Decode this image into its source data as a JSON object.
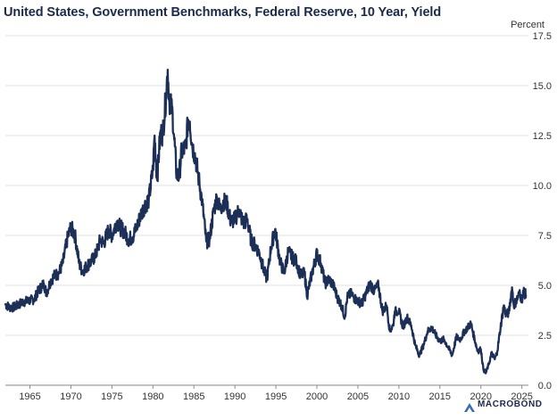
{
  "chart_data": {
    "type": "line",
    "title": "United States, Government Benchmarks, Federal Reserve, 10 Year, Yield",
    "ylabel_unit": "Percent",
    "ylim": [
      0,
      17.5
    ],
    "xlim": [
      1962,
      2025.8
    ],
    "y_ticks": [
      "0.0",
      "2.5",
      "5.0",
      "7.5",
      "10.0",
      "12.5",
      "15.0",
      "17.5"
    ],
    "x_ticks": [
      "1965",
      "1970",
      "1975",
      "1980",
      "1985",
      "1990",
      "1995",
      "2000",
      "2005",
      "2010",
      "2015",
      "2020",
      "2025"
    ],
    "y_axis_position": "right",
    "grid": "horizontal",
    "watermark": "MACROBOND",
    "series": [
      {
        "color": "#1b2f57",
        "x": [
          1962.0,
          1962.5,
          1963.0,
          1963.5,
          1964.0,
          1964.5,
          1965.0,
          1965.5,
          1966.0,
          1966.7,
          1967.0,
          1967.5,
          1968.0,
          1968.5,
          1969.0,
          1969.6,
          1970.0,
          1970.5,
          1971.0,
          1971.4,
          1972.0,
          1972.5,
          1973.0,
          1973.6,
          1974.0,
          1974.6,
          1975.0,
          1975.6,
          1976.0,
          1976.5,
          1977.0,
          1977.5,
          1978.0,
          1978.5,
          1979.0,
          1979.5,
          1980.0,
          1980.2,
          1980.5,
          1980.9,
          1981.2,
          1981.6,
          1981.8,
          1982.0,
          1982.4,
          1982.6,
          1982.9,
          1983.2,
          1983.5,
          1984.0,
          1984.3,
          1984.5,
          1984.8,
          1985.2,
          1985.6,
          1986.0,
          1986.5,
          1986.9,
          1987.4,
          1987.8,
          1988.2,
          1988.6,
          1989.0,
          1989.5,
          1990.0,
          1990.5,
          1991.0,
          1991.5,
          1992.0,
          1992.5,
          1993.0,
          1993.5,
          1993.9,
          1994.4,
          1994.9,
          1995.5,
          1996.0,
          1996.5,
          1997.0,
          1997.5,
          1998.0,
          1998.5,
          1998.8,
          1999.4,
          2000.0,
          2000.5,
          2001.0,
          2001.5,
          2002.0,
          2002.5,
          2003.0,
          2003.4,
          2003.7,
          2004.2,
          2004.5,
          2005.0,
          2005.5,
          2006.0,
          2006.5,
          2007.0,
          2007.5,
          2008.0,
          2008.5,
          2008.9,
          2009.3,
          2009.5,
          2010.0,
          2010.5,
          2011.0,
          2011.5,
          2012.0,
          2012.5,
          2013.0,
          2013.5,
          2014.0,
          2014.5,
          2015.0,
          2015.5,
          2016.0,
          2016.5,
          2017.0,
          2017.5,
          2018.0,
          2018.8,
          2019.0,
          2019.6,
          2020.0,
          2020.3,
          2020.6,
          2021.0,
          2021.3,
          2021.7,
          2022.0,
          2022.4,
          2022.8,
          2023.0,
          2023.4,
          2023.8,
          2024.0,
          2024.3,
          2024.7,
          2025.0,
          2025.2,
          2025.5
        ],
        "values": [
          4.05,
          3.9,
          3.9,
          4.0,
          4.15,
          4.2,
          4.25,
          4.3,
          4.7,
          5.1,
          4.6,
          5.2,
          5.5,
          5.6,
          6.1,
          7.4,
          7.9,
          7.5,
          6.1,
          5.7,
          6.0,
          6.2,
          6.5,
          7.3,
          7.1,
          7.8,
          7.5,
          8.2,
          7.9,
          7.7,
          7.3,
          7.4,
          7.9,
          8.5,
          9.0,
          9.3,
          10.8,
          12.5,
          10.3,
          12.6,
          12.6,
          14.5,
          15.8,
          14.3,
          13.6,
          12.3,
          10.5,
          10.5,
          11.7,
          11.9,
          13.3,
          13.2,
          12.0,
          11.4,
          10.3,
          9.2,
          7.2,
          7.3,
          8.7,
          9.4,
          8.8,
          9.2,
          9.1,
          8.2,
          8.3,
          8.8,
          8.1,
          8.3,
          7.2,
          7.0,
          6.6,
          5.8,
          5.3,
          6.9,
          7.8,
          6.2,
          5.6,
          6.7,
          6.4,
          6.2,
          5.5,
          5.6,
          4.5,
          5.6,
          6.6,
          6.1,
          5.1,
          5.3,
          5.0,
          4.4,
          4.0,
          3.4,
          4.4,
          4.6,
          4.4,
          4.2,
          4.1,
          4.6,
          5.1,
          4.7,
          5.0,
          3.7,
          4.0,
          2.7,
          3.0,
          3.7,
          3.7,
          2.9,
          3.4,
          3.0,
          2.0,
          1.5,
          2.0,
          2.7,
          2.9,
          2.5,
          2.2,
          2.3,
          1.9,
          1.5,
          2.4,
          2.3,
          2.7,
          3.1,
          2.7,
          1.7,
          1.8,
          0.8,
          0.6,
          1.1,
          1.6,
          1.3,
          1.7,
          2.9,
          4.0,
          3.6,
          3.6,
          4.9,
          4.0,
          4.2,
          4.6,
          4.3,
          4.7,
          4.5
        ]
      }
    ]
  }
}
